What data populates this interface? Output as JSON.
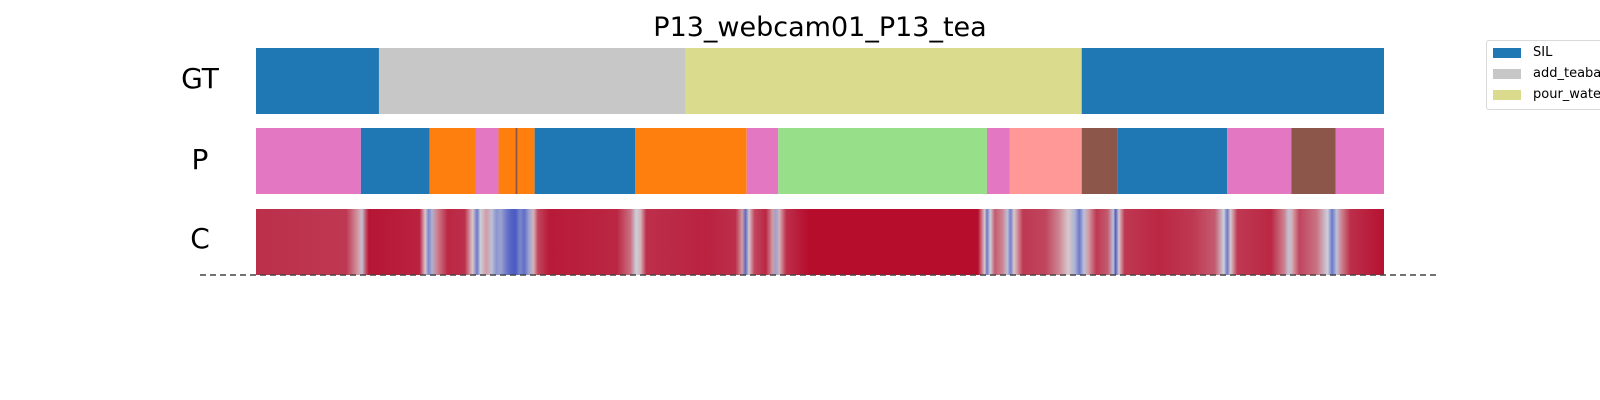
{
  "chart_data": {
    "type": "heatmap",
    "title": "P13_webcam01_P13_tea",
    "rows": [
      {
        "label": "GT",
        "segments": [
          {
            "start": 0.0,
            "end": 0.109,
            "color": "#1f77b4"
          },
          {
            "start": 0.109,
            "end": 0.381,
            "color": "#c7c7c7"
          },
          {
            "start": 0.381,
            "end": 0.732,
            "color": "#dbdb8d"
          },
          {
            "start": 0.732,
            "end": 1.0,
            "color": "#1f77b4"
          }
        ]
      },
      {
        "label": "P",
        "segments": [
          {
            "start": 0.0,
            "end": 0.093,
            "color": "#e377c2"
          },
          {
            "start": 0.093,
            "end": 0.154,
            "color": "#1f77b4"
          },
          {
            "start": 0.154,
            "end": 0.195,
            "color": "#ff7f0e"
          },
          {
            "start": 0.195,
            "end": 0.215,
            "color": "#e377c2"
          },
          {
            "start": 0.215,
            "end": 0.23,
            "color": "#ff7f0e"
          },
          {
            "start": 0.23,
            "end": 0.232,
            "color": "#8c564b"
          },
          {
            "start": 0.232,
            "end": 0.247,
            "color": "#ff7f0e"
          },
          {
            "start": 0.247,
            "end": 0.336,
            "color": "#1f77b4"
          },
          {
            "start": 0.336,
            "end": 0.435,
            "color": "#ff7f0e"
          },
          {
            "start": 0.435,
            "end": 0.463,
            "color": "#e377c2"
          },
          {
            "start": 0.463,
            "end": 0.648,
            "color": "#98df8a"
          },
          {
            "start": 0.648,
            "end": 0.668,
            "color": "#e377c2"
          },
          {
            "start": 0.668,
            "end": 0.732,
            "color": "#ff9896"
          },
          {
            "start": 0.732,
            "end": 0.764,
            "color": "#8c564b"
          },
          {
            "start": 0.764,
            "end": 0.861,
            "color": "#1f77b4"
          },
          {
            "start": 0.861,
            "end": 0.918,
            "color": "#e377c2"
          },
          {
            "start": 0.918,
            "end": 0.957,
            "color": "#8c564b"
          },
          {
            "start": 0.957,
            "end": 1.0,
            "color": "#e377c2"
          }
        ]
      },
      {
        "label": "C",
        "colormap": "coolwarm",
        "confidence_points": [
          [
            0.0,
            0.9
          ],
          [
            0.08,
            0.88
          ],
          [
            0.092,
            0.62
          ],
          [
            0.094,
            0.4
          ],
          [
            0.097,
            0.8
          ],
          [
            0.1,
            0.96
          ],
          [
            0.145,
            0.93
          ],
          [
            0.15,
            0.55
          ],
          [
            0.153,
            0.2
          ],
          [
            0.156,
            0.35
          ],
          [
            0.16,
            0.7
          ],
          [
            0.17,
            0.92
          ],
          [
            0.185,
            0.9
          ],
          [
            0.192,
            0.55
          ],
          [
            0.196,
            0.15
          ],
          [
            0.199,
            0.45
          ],
          [
            0.204,
            0.65
          ],
          [
            0.209,
            0.4
          ],
          [
            0.213,
            0.25
          ],
          [
            0.217,
            0.3
          ],
          [
            0.222,
            0.15
          ],
          [
            0.226,
            0.08
          ],
          [
            0.23,
            0.05
          ],
          [
            0.234,
            0.2
          ],
          [
            0.238,
            0.12
          ],
          [
            0.242,
            0.3
          ],
          [
            0.246,
            0.6
          ],
          [
            0.25,
            0.85
          ],
          [
            0.26,
            0.95
          ],
          [
            0.32,
            0.92
          ],
          [
            0.332,
            0.75
          ],
          [
            0.337,
            0.45
          ],
          [
            0.341,
            0.6
          ],
          [
            0.346,
            0.9
          ],
          [
            0.4,
            0.93
          ],
          [
            0.425,
            0.9
          ],
          [
            0.431,
            0.65
          ],
          [
            0.434,
            0.1
          ],
          [
            0.437,
            0.55
          ],
          [
            0.442,
            0.85
          ],
          [
            0.452,
            0.92
          ],
          [
            0.458,
            0.65
          ],
          [
            0.461,
            0.3
          ],
          [
            0.464,
            0.6
          ],
          [
            0.47,
            0.9
          ],
          [
            0.49,
            0.98
          ],
          [
            0.64,
            0.98
          ],
          [
            0.646,
            0.55
          ],
          [
            0.648,
            0.15
          ],
          [
            0.651,
            0.45
          ],
          [
            0.655,
            0.8
          ],
          [
            0.662,
            0.7
          ],
          [
            0.666,
            0.4
          ],
          [
            0.669,
            0.18
          ],
          [
            0.672,
            0.55
          ],
          [
            0.68,
            0.88
          ],
          [
            0.7,
            0.85
          ],
          [
            0.712,
            0.7
          ],
          [
            0.72,
            0.55
          ],
          [
            0.726,
            0.35
          ],
          [
            0.73,
            0.15
          ],
          [
            0.734,
            0.4
          ],
          [
            0.738,
            0.65
          ],
          [
            0.745,
            0.88
          ],
          [
            0.755,
            0.8
          ],
          [
            0.76,
            0.4
          ],
          [
            0.762,
            0.05
          ],
          [
            0.765,
            0.55
          ],
          [
            0.77,
            0.88
          ],
          [
            0.8,
            0.92
          ],
          [
            0.83,
            0.88
          ],
          [
            0.85,
            0.8
          ],
          [
            0.858,
            0.45
          ],
          [
            0.861,
            0.15
          ],
          [
            0.864,
            0.55
          ],
          [
            0.87,
            0.88
          ],
          [
            0.9,
            0.92
          ],
          [
            0.912,
            0.7
          ],
          [
            0.915,
            0.4
          ],
          [
            0.918,
            0.6
          ],
          [
            0.925,
            0.85
          ],
          [
            0.94,
            0.75
          ],
          [
            0.95,
            0.45
          ],
          [
            0.954,
            0.15
          ],
          [
            0.958,
            0.4
          ],
          [
            0.962,
            0.7
          ],
          [
            0.97,
            0.9
          ],
          [
            1.0,
            0.97
          ]
        ]
      }
    ],
    "legend": {
      "placement": "top-right",
      "entries": [
        {
          "name": "SIL",
          "color": "#1f77b4"
        },
        {
          "name": "add_teabag",
          "color": "#c7c7c7"
        },
        {
          "name": "pour_water",
          "color": "#dbdb8d"
        }
      ]
    },
    "baseline_style": "dashed"
  }
}
